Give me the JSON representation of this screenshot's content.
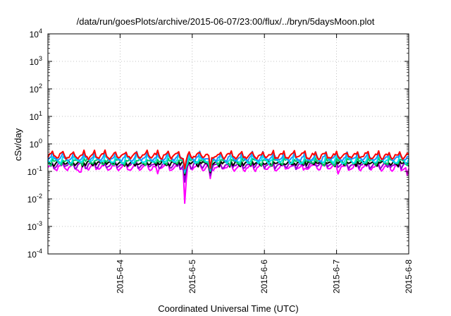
{
  "chart_data": {
    "type": "line",
    "title": "/data/run/goesPlots/archive/2015-06-07/23:00/flux/../bryn/5daysMoon.plot",
    "xlabel": "Coordinated Universal Time (UTC)",
    "ylabel": "cSv/day",
    "yscale": "log",
    "ylim": [
      0.0001,
      10000
    ],
    "xlim": [
      3.0,
      8.0
    ],
    "grid": true,
    "x_ticks": [
      {
        "x": 4,
        "label": "2015-6-4"
      },
      {
        "x": 5,
        "label": "2015-6-5"
      },
      {
        "x": 6,
        "label": "2015-6-6"
      },
      {
        "x": 7,
        "label": "2015-6-7"
      },
      {
        "x": 8,
        "label": "2015-6-8"
      }
    ],
    "y_ticks": [
      {
        "exp": 4,
        "base": "10",
        "sup": "4"
      },
      {
        "exp": 3,
        "base": "10",
        "sup": "3"
      },
      {
        "exp": 2,
        "base": "10",
        "sup": "2"
      },
      {
        "exp": 1,
        "base": "10",
        "sup": "1"
      },
      {
        "exp": 0,
        "base": "10",
        "sup": "0"
      },
      {
        "exp": -1,
        "base": "10",
        "sup": "-1"
      },
      {
        "exp": -2,
        "base": "10",
        "sup": "-2"
      },
      {
        "exp": -3,
        "base": "10",
        "sup": "-3"
      },
      {
        "exp": -4,
        "base": "10",
        "sup": "-4"
      }
    ],
    "series": [
      {
        "color": "#ff00ff",
        "level": 0.14,
        "dips": [
          {
            "x": 4.9,
            "y": 0.0038
          },
          {
            "x": 5.25,
            "y": 0.055
          },
          {
            "x": 3.45,
            "y": 0.07
          },
          {
            "x": 4.52,
            "y": 0.08
          },
          {
            "x": 7.02,
            "y": 0.08
          },
          {
            "x": 6.55,
            "y": 0.09
          },
          {
            "x": 7.98,
            "y": 0.07
          }
        ]
      },
      {
        "color": "#9400d3",
        "level": 0.165,
        "dips": [
          {
            "x": 4.9,
            "y": 0.03
          },
          {
            "x": 5.25,
            "y": 0.07
          }
        ]
      },
      {
        "color": "#000000",
        "level": 0.19,
        "dips": [
          {
            "x": 4.9,
            "y": 0.06
          },
          {
            "x": 5.25,
            "y": 0.09
          }
        ]
      },
      {
        "color": "#00cc66",
        "level": 0.22,
        "dips": [
          {
            "x": 4.9,
            "y": 0.07
          },
          {
            "x": 5.25,
            "y": 0.1
          }
        ]
      },
      {
        "color": "#00e5ee",
        "level": 0.26,
        "dips": [
          {
            "x": 4.9,
            "y": 0.08
          },
          {
            "x": 5.25,
            "y": 0.11
          }
        ]
      },
      {
        "color": "#1e90ff",
        "level": 0.31,
        "dips": [
          {
            "x": 4.9,
            "y": 0.09
          },
          {
            "x": 5.25,
            "y": 0.12
          }
        ]
      },
      {
        "color": "#ff0000",
        "level": 0.37,
        "dips": [
          {
            "x": 4.9,
            "y": 0.1
          },
          {
            "x": 5.25,
            "y": 0.13
          }
        ]
      }
    ]
  }
}
